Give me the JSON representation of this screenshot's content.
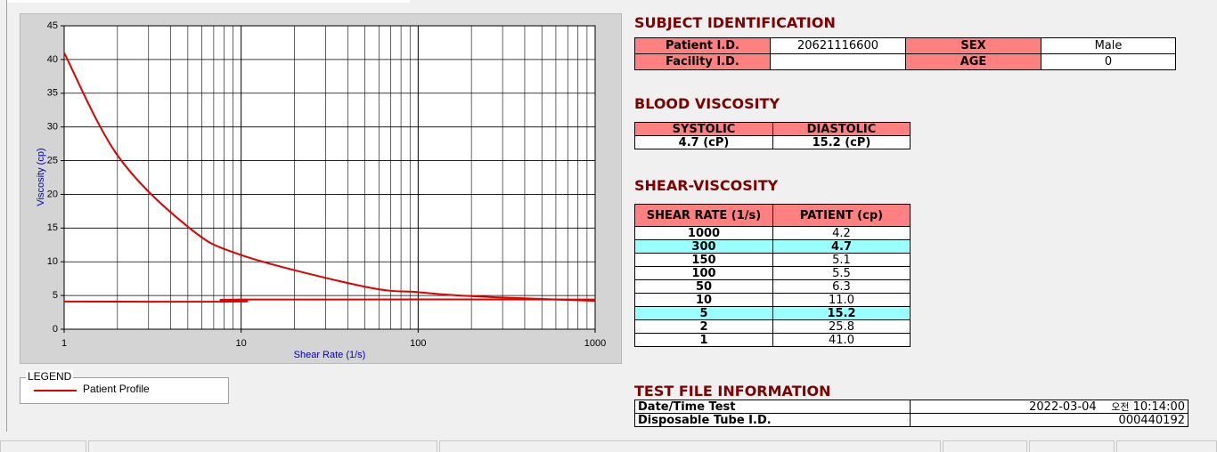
{
  "chart_data": {
    "type": "line",
    "xlabel": "Shear Rate (1/s)",
    "ylabel": "Viscosity (cp)",
    "xscale": "log",
    "xlim": [
      1,
      1000
    ],
    "xticks": [
      1,
      10,
      100,
      1000
    ],
    "ylim": [
      0,
      45
    ],
    "yticks": [
      0,
      5,
      10,
      15,
      20,
      25,
      30,
      35,
      40,
      45
    ],
    "grid": true,
    "legend_title": "LEGEND",
    "series": [
      {
        "name": "Patient Profile",
        "color": "#e00000",
        "x": [
          1,
          2,
          5,
          10,
          50,
          100,
          150,
          300,
          1000
        ],
        "values": [
          41,
          25.8,
          15.2,
          11,
          6.3,
          5.5,
          5.1,
          4.7,
          4.2
        ]
      },
      {
        "color": "#e00000",
        "x": [
          1,
          10,
          10,
          1000
        ],
        "values": [
          4.1,
          4.1,
          4.4,
          4.4
        ]
      }
    ]
  },
  "subject": {
    "title": "SUBJECT IDENTIFICATION",
    "rows": [
      [
        "Patient I.D.",
        "20621116600",
        "SEX",
        "Male"
      ],
      [
        "Facility I.D.",
        null,
        "AGE",
        "0"
      ]
    ]
  },
  "blood": {
    "title": "BLOOD VISCOSITY",
    "headers": [
      "SYSTOLIC",
      "DIASTOLIC"
    ],
    "values": [
      "4.7 (cP)",
      "15.2 (cP)"
    ]
  },
  "shear": {
    "title": "SHEAR-VISCOSITY",
    "headers": [
      "SHEAR RATE (1/s)",
      "PATIENT (cp)"
    ],
    "rows": [
      [
        "1000",
        "4.2"
      ],
      [
        "300",
        "4.7"
      ],
      [
        "150",
        "5.1"
      ],
      [
        "100",
        "5.5"
      ],
      [
        "50",
        "6.3"
      ],
      [
        "10",
        "11.0"
      ],
      [
        "5",
        "15.2"
      ],
      [
        "2",
        "25.8"
      ],
      [
        "1",
        "41.0"
      ]
    ],
    "highlighted": [
      false,
      true,
      false,
      false,
      false,
      false,
      true,
      false,
      false
    ]
  },
  "test_file": {
    "title": "TEST FILE INFORMATION",
    "rows": [
      [
        "Date/Time Test",
        "2022-03-04",
        "오전",
        "10:14:00"
      ],
      [
        "Disposable Tube I.D.",
        "000440192"
      ]
    ]
  }
}
